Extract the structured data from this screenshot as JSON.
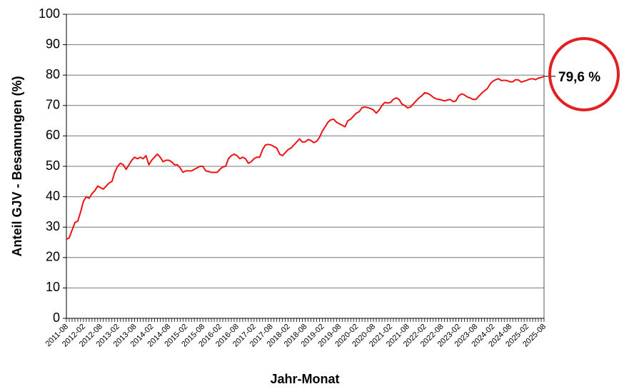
{
  "chart_data": {
    "type": "line",
    "ylabel": "Anteil GJV - Besamungen (%)",
    "xlabel": "Jahr-Monat",
    "annotation": "79,6 %",
    "color": "#ee1111",
    "grid": true,
    "ylim": [
      0,
      100
    ],
    "yticks": [
      0,
      10,
      20,
      30,
      40,
      50,
      60,
      70,
      80,
      90,
      100
    ],
    "categories": [
      "2011-08",
      null,
      null,
      null,
      null,
      null,
      "2012-02",
      null,
      null,
      null,
      null,
      null,
      "2012-08",
      null,
      null,
      null,
      null,
      null,
      "2013-02",
      null,
      null,
      null,
      null,
      null,
      "2013-08",
      null,
      null,
      null,
      null,
      null,
      "2014-02",
      null,
      null,
      null,
      null,
      null,
      "2014-08",
      null,
      null,
      null,
      null,
      null,
      "2015-02",
      null,
      null,
      null,
      null,
      null,
      "2015-08",
      null,
      null,
      null,
      null,
      null,
      "2016-02",
      null,
      null,
      null,
      null,
      null,
      "2016-08",
      null,
      null,
      null,
      null,
      null,
      "2017-02",
      null,
      null,
      null,
      null,
      null,
      "2017-08",
      null,
      null,
      null,
      null,
      null,
      "2018-02",
      null,
      null,
      null,
      null,
      null,
      "2018-08",
      null,
      null,
      null,
      null,
      null,
      "2019-02",
      null,
      null,
      null,
      null,
      null,
      "2019-08",
      null,
      null,
      null,
      null,
      null,
      "2020-02",
      null,
      null,
      null,
      null,
      null,
      "2020-08",
      null,
      null,
      null,
      null,
      null,
      "2021-02",
      null,
      null,
      null,
      null,
      null,
      "2021-08",
      null,
      null,
      null,
      null,
      null,
      "2022-02",
      null,
      null,
      null,
      null,
      null,
      "2022-08",
      null,
      null,
      null,
      null,
      null,
      "2023-02",
      null,
      null,
      null,
      null,
      null,
      "2023-08",
      null,
      null,
      null,
      null,
      null,
      "2024-02",
      null,
      null,
      null,
      null,
      null,
      "2024-08",
      null,
      null,
      null,
      null,
      null,
      "2025-02",
      null,
      null,
      null,
      null,
      null,
      "2025-08"
    ],
    "values": [
      26,
      26.5,
      29,
      31.5,
      32,
      35,
      38.5,
      40,
      39.5,
      41,
      42,
      43.5,
      43,
      42.5,
      43.5,
      44.5,
      45,
      48,
      50,
      51,
      50.5,
      49,
      50.5,
      52,
      53,
      52.5,
      53,
      52.5,
      53.5,
      50.5,
      52,
      53,
      54,
      53,
      51.5,
      52,
      52,
      51.5,
      50.5,
      50.5,
      49.5,
      48,
      48.5,
      48.5,
      48.5,
      49,
      49.5,
      50,
      50,
      48.5,
      48.3,
      48,
      48,
      48,
      49,
      49.8,
      50,
      52.5,
      53.5,
      54,
      53.5,
      52.5,
      53,
      52.5,
      51,
      51.5,
      52.5,
      53,
      53,
      55.5,
      57,
      57.2,
      57,
      56.5,
      56,
      54,
      53.5,
      54.5,
      55.5,
      56,
      57,
      58,
      59,
      58,
      58,
      58.8,
      58.5,
      57.8,
      58.2,
      59.5,
      61.5,
      63,
      64.5,
      65.3,
      65.5,
      64.5,
      64,
      63.5,
      63,
      65,
      65.5,
      66.5,
      67.5,
      68,
      69.3,
      69.5,
      69.3,
      69,
      68.5,
      67.5,
      68.5,
      70,
      71,
      70.8,
      71,
      72,
      72.5,
      72,
      70.5,
      70,
      69.2,
      69.5,
      70.5,
      71.5,
      72.5,
      73.2,
      74.2,
      74,
      73.5,
      72.7,
      72.2,
      72,
      71.8,
      71.5,
      71.8,
      72,
      71.3,
      71.5,
      73.2,
      73.8,
      73.5,
      72.8,
      72.5,
      72,
      72,
      73,
      74,
      74.8,
      75.5,
      77,
      78,
      78.5,
      78.8,
      78.2,
      78.3,
      78.2,
      77.8,
      77.8,
      78.5,
      78.4,
      77.7,
      78,
      78.3,
      78.7,
      78.8,
      78.5,
      79,
      79.2,
      79.6
    ]
  }
}
